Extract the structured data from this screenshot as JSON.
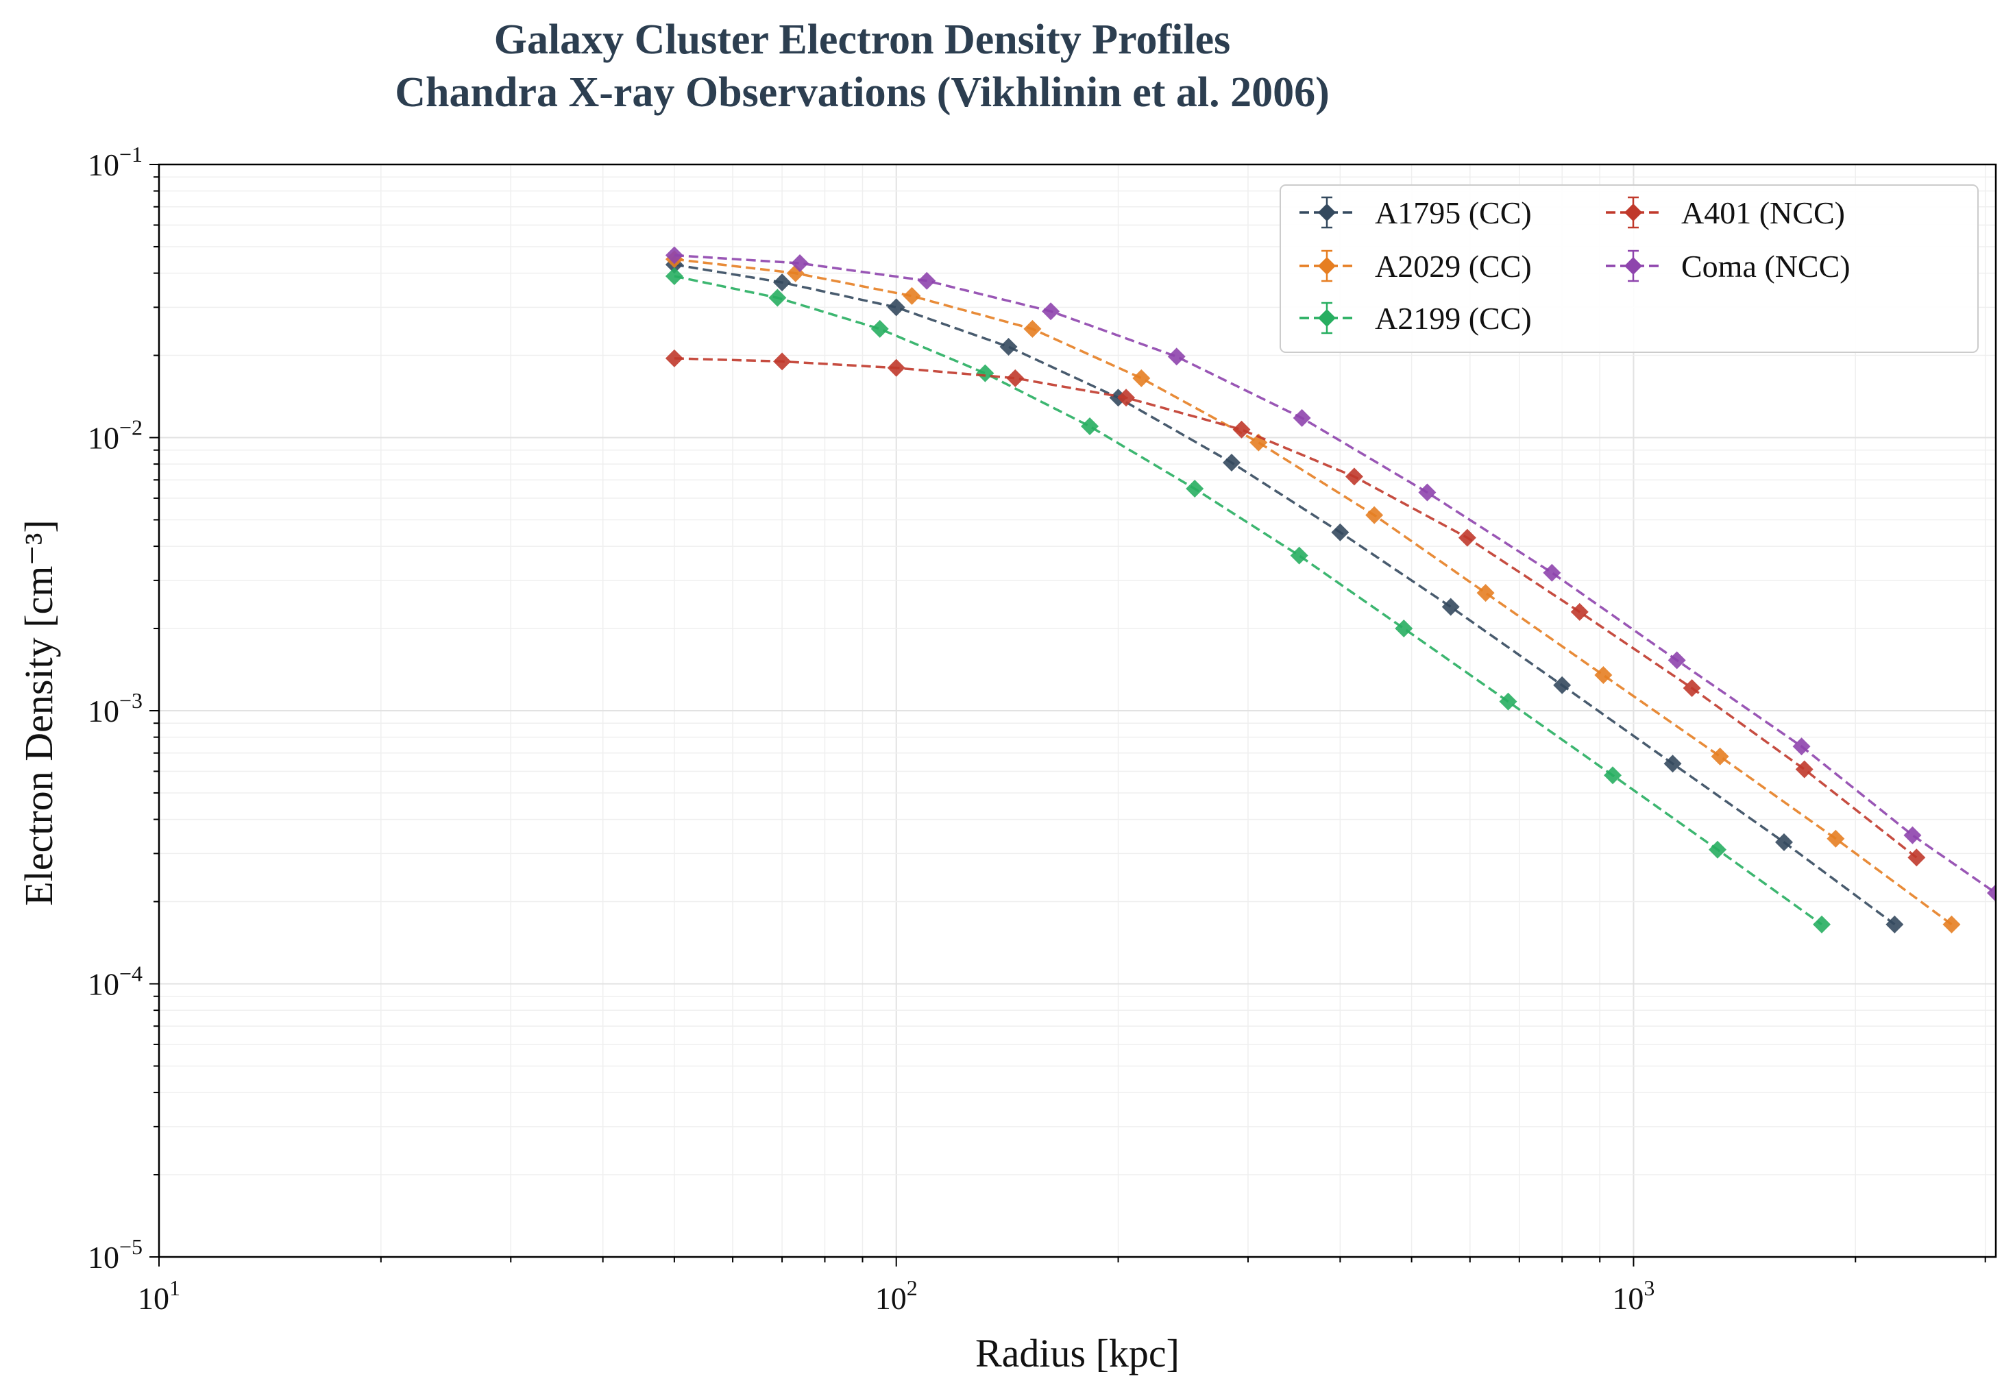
{
  "chart_data": {
    "type": "line",
    "title_line1": "Galaxy Cluster Electron Density Profiles",
    "title_line2": "Chandra X-ray Observations (Vikhlinin et al. 2006)",
    "xlabel": "Radius [kpc]",
    "ylabel": "Electron Density [cm⁻³]",
    "xscale": "log",
    "yscale": "log",
    "xlim": [
      10,
      3100
    ],
    "ylim": [
      1e-05,
      0.1
    ],
    "xticks": [
      {
        "value": 10,
        "base": "10",
        "exp": "1"
      },
      {
        "value": 100,
        "base": "10",
        "exp": "2"
      },
      {
        "value": 1000,
        "base": "10",
        "exp": "3"
      }
    ],
    "yticks": [
      {
        "value": 0.1,
        "base": "10",
        "exp": "−1"
      },
      {
        "value": 0.01,
        "base": "10",
        "exp": "−2"
      },
      {
        "value": 0.001,
        "base": "10",
        "exp": "−3"
      },
      {
        "value": 0.0001,
        "base": "10",
        "exp": "−4"
      },
      {
        "value": 1e-05,
        "base": "10",
        "exp": "−5"
      }
    ],
    "grid": true,
    "legend_position": "top-right",
    "legend_columns": 2,
    "series": [
      {
        "name": "A1795 (CC)",
        "color": "#34495e",
        "x": [
          50,
          70,
          100,
          142,
          200,
          285,
          400,
          565,
          800,
          1130,
          1600,
          2260
        ],
        "y": [
          0.043,
          0.037,
          0.03,
          0.0215,
          0.014,
          0.0081,
          0.0045,
          0.0024,
          0.00124,
          0.00064,
          0.00033,
          0.000165
        ]
      },
      {
        "name": "A2029 (CC)",
        "color": "#e67e22",
        "x": [
          50,
          73,
          105,
          153,
          215,
          310,
          445,
          630,
          910,
          1310,
          1880,
          2700
        ],
        "y": [
          0.045,
          0.04,
          0.033,
          0.025,
          0.0165,
          0.0096,
          0.0052,
          0.0027,
          0.00135,
          0.00068,
          0.00034,
          0.000165
        ]
      },
      {
        "name": "A2199 (CC)",
        "color": "#27ae60",
        "x": [
          50,
          69,
          95,
          132,
          183,
          254,
          352,
          488,
          676,
          937,
          1300,
          1800
        ],
        "y": [
          0.039,
          0.0325,
          0.025,
          0.0172,
          0.011,
          0.0065,
          0.0037,
          0.002,
          0.00108,
          0.00058,
          0.00031,
          0.000165
        ]
      },
      {
        "name": "A401 (NCC)",
        "color": "#c0392b",
        "x": [
          50,
          70,
          100,
          145,
          205,
          294,
          418,
          595,
          845,
          1200,
          1705,
          2420
        ],
        "y": [
          0.0195,
          0.019,
          0.018,
          0.0165,
          0.014,
          0.0107,
          0.0072,
          0.0043,
          0.0023,
          0.00121,
          0.00061,
          0.00029
        ]
      },
      {
        "name": "Coma (NCC)",
        "color": "#8e44ad",
        "x": [
          50,
          74,
          110,
          162,
          240,
          355,
          525,
          775,
          1145,
          1690,
          2390,
          3100
        ],
        "y": [
          0.0465,
          0.0435,
          0.0375,
          0.029,
          0.0198,
          0.0118,
          0.0063,
          0.0032,
          0.00153,
          0.00074,
          0.00035,
          0.000215
        ]
      }
    ]
  }
}
